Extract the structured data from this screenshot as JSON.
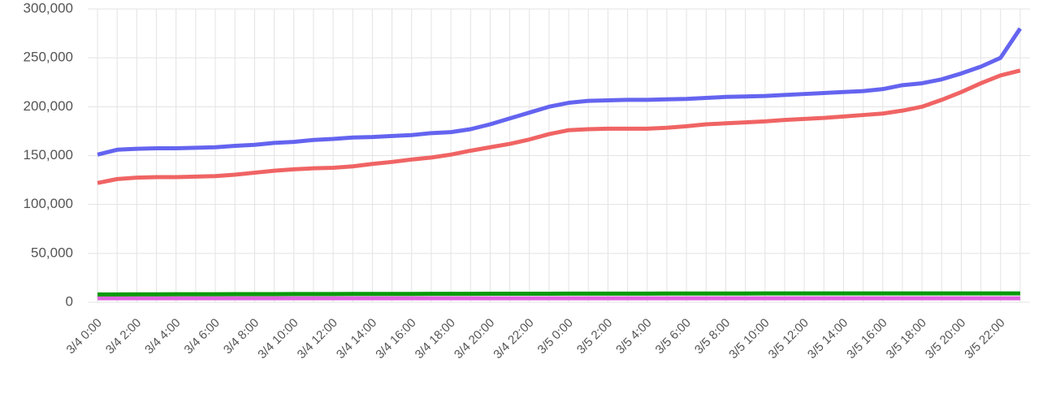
{
  "chart_data": {
    "type": "line",
    "categories": [
      "3/4 0:00",
      null,
      "3/4 2:00",
      null,
      "3/4 4:00",
      null,
      "3/4 6:00",
      null,
      "3/4 8:00",
      null,
      "3/4 10:00",
      null,
      "3/4 12:00",
      null,
      "3/4 14:00",
      null,
      "3/4 16:00",
      null,
      "3/4 18:00",
      null,
      "3/4 20:00",
      null,
      "3/4 22:00",
      null,
      "3/5 0:00",
      null,
      "3/5 2:00",
      null,
      "3/5 4:00",
      null,
      "3/5 6:00",
      null,
      "3/5 8:00",
      null,
      "3/5 10:00",
      null,
      "3/5 12:00",
      null,
      "3/5 14:00",
      null,
      "3/5 16:00",
      null,
      "3/5 18:00",
      null,
      "3/5 20:00",
      null,
      "3/5 22:00",
      null
    ],
    "series": [
      {
        "color": "#6464f0",
        "values": [
          151000,
          156000,
          157000,
          157500,
          157500,
          158000,
          158500,
          160000,
          161000,
          163000,
          164000,
          166000,
          167000,
          168500,
          169000,
          170000,
          171000,
          173000,
          174000,
          177000,
          182000,
          188000,
          194000,
          200000,
          204000,
          206000,
          206500,
          207000,
          207000,
          207500,
          208000,
          209000,
          210000,
          210500,
          211000,
          212000,
          213000,
          214000,
          215000,
          216000,
          218000,
          222000,
          224000,
          228000,
          234000,
          241000,
          250000,
          280000
        ]
      },
      {
        "color": "#f06464",
        "values": [
          122000,
          126000,
          127500,
          128000,
          128000,
          128500,
          129000,
          130500,
          132500,
          134500,
          136000,
          137000,
          137500,
          139000,
          141500,
          143500,
          146000,
          148000,
          151000,
          155000,
          158500,
          162000,
          166500,
          172000,
          176000,
          177000,
          177500,
          177500,
          177500,
          178500,
          180000,
          182000,
          183000,
          184000,
          185000,
          186500,
          187500,
          188500,
          190000,
          191500,
          193000,
          196000,
          200000,
          207000,
          215000,
          224000,
          232000,
          237000
        ]
      },
      {
        "color": "#0a9a0a",
        "values": [
          8000,
          8000,
          8100,
          8100,
          8200,
          8200,
          8200,
          8300,
          8300,
          8300,
          8400,
          8400,
          8400,
          8500,
          8500,
          8500,
          8500,
          8600,
          8600,
          8600,
          8700,
          8700,
          8700,
          8700,
          8800,
          8800,
          8800,
          8800,
          8800,
          8900,
          8900,
          8900,
          8900,
          8900,
          9000,
          9000,
          9000,
          9000,
          9000,
          9000,
          9000,
          9000,
          9000,
          9000,
          9000,
          9000,
          9000,
          9000
        ]
      },
      {
        "color": "#e066e0",
        "values": [
          4000,
          4000,
          4000,
          4000,
          4000,
          4000,
          4000,
          4000,
          4000,
          4000,
          4000,
          4000,
          4000,
          4000,
          4000,
          4000,
          4000,
          4000,
          4000,
          4000,
          4000,
          4000,
          4000,
          4000,
          4000,
          4000,
          4000,
          4000,
          4000,
          4000,
          4000,
          4000,
          4000,
          4000,
          4000,
          4000,
          4000,
          4000,
          4000,
          4000,
          4000,
          4000,
          4000,
          4000,
          4000,
          4000,
          4000,
          4000
        ]
      }
    ],
    "ylim": [
      0,
      300000
    ],
    "yticks": [
      {
        "value": 0,
        "label": "0"
      },
      {
        "value": 50000,
        "label": "50,000"
      },
      {
        "value": 100000,
        "label": "100,000"
      },
      {
        "value": 150000,
        "label": "150,000"
      },
      {
        "value": 200000,
        "label": "200,000"
      },
      {
        "value": 250000,
        "label": "250,000"
      },
      {
        "value": 300000,
        "label": "300,000"
      }
    ],
    "grid": true
  }
}
